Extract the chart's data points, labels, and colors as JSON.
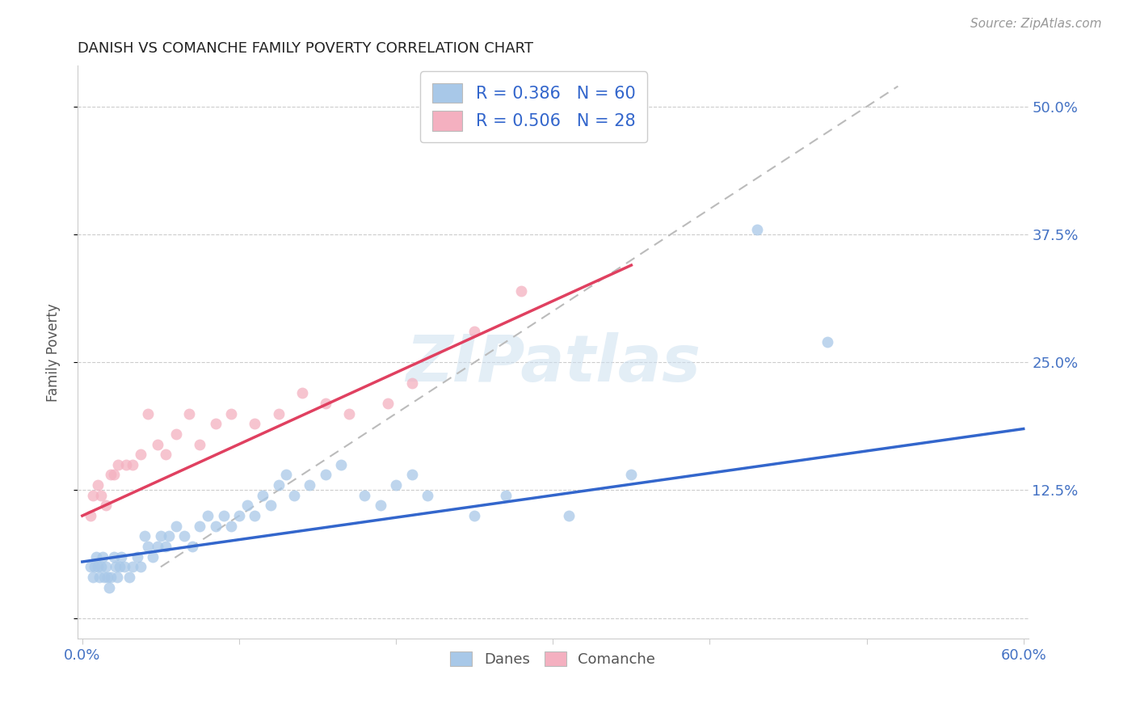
{
  "title": "DANISH VS COMANCHE FAMILY POVERTY CORRELATION CHART",
  "source": "Source: ZipAtlas.com",
  "ylabel": "Family Poverty",
  "xlim": [
    0.0,
    0.6
  ],
  "ylim": [
    -0.02,
    0.54
  ],
  "xtick_positions": [
    0.0,
    0.1,
    0.2,
    0.3,
    0.4,
    0.5,
    0.6
  ],
  "xticklabels": [
    "0.0%",
    "",
    "",
    "",
    "",
    "",
    "60.0%"
  ],
  "ytick_positions": [
    0.0,
    0.125,
    0.25,
    0.375,
    0.5
  ],
  "yticklabels_right": [
    "",
    "12.5%",
    "25.0%",
    "37.5%",
    "50.0%"
  ],
  "danes_R": 0.386,
  "danes_N": 60,
  "comanche_R": 0.506,
  "comanche_N": 28,
  "danes_color": "#a8c8e8",
  "comanche_color": "#f4b0c0",
  "danes_line_color": "#3366cc",
  "comanche_line_color": "#e04060",
  "diagonal_color": "#bbbbbb",
  "watermark": "ZIPatlas",
  "background_color": "#ffffff",
  "grid_color": "#cccccc",
  "title_color": "#222222",
  "axis_label_color": "#555555",
  "tick_label_color": "#4472c4",
  "danes_x": [
    0.005,
    0.007,
    0.008,
    0.009,
    0.01,
    0.011,
    0.012,
    0.013,
    0.014,
    0.015,
    0.016,
    0.017,
    0.018,
    0.02,
    0.021,
    0.022,
    0.024,
    0.025,
    0.027,
    0.03,
    0.032,
    0.035,
    0.037,
    0.04,
    0.042,
    0.045,
    0.048,
    0.05,
    0.053,
    0.055,
    0.06,
    0.065,
    0.07,
    0.075,
    0.08,
    0.085,
    0.09,
    0.095,
    0.1,
    0.105,
    0.11,
    0.115,
    0.12,
    0.125,
    0.13,
    0.135,
    0.145,
    0.155,
    0.165,
    0.18,
    0.19,
    0.2,
    0.21,
    0.22,
    0.25,
    0.27,
    0.31,
    0.35,
    0.43,
    0.475
  ],
  "danes_y": [
    0.05,
    0.04,
    0.05,
    0.06,
    0.05,
    0.04,
    0.05,
    0.06,
    0.04,
    0.05,
    0.04,
    0.03,
    0.04,
    0.06,
    0.05,
    0.04,
    0.05,
    0.06,
    0.05,
    0.04,
    0.05,
    0.06,
    0.05,
    0.08,
    0.07,
    0.06,
    0.07,
    0.08,
    0.07,
    0.08,
    0.09,
    0.08,
    0.07,
    0.09,
    0.1,
    0.09,
    0.1,
    0.09,
    0.1,
    0.11,
    0.1,
    0.12,
    0.11,
    0.13,
    0.14,
    0.12,
    0.13,
    0.14,
    0.15,
    0.12,
    0.11,
    0.13,
    0.14,
    0.12,
    0.1,
    0.12,
    0.1,
    0.14,
    0.38,
    0.27
  ],
  "comanche_x": [
    0.005,
    0.007,
    0.01,
    0.012,
    0.015,
    0.018,
    0.02,
    0.023,
    0.028,
    0.032,
    0.037,
    0.042,
    0.048,
    0.053,
    0.06,
    0.068,
    0.075,
    0.085,
    0.095,
    0.11,
    0.125,
    0.14,
    0.155,
    0.17,
    0.195,
    0.21,
    0.25,
    0.28
  ],
  "comanche_y": [
    0.1,
    0.12,
    0.13,
    0.12,
    0.11,
    0.14,
    0.14,
    0.15,
    0.15,
    0.15,
    0.16,
    0.2,
    0.17,
    0.16,
    0.18,
    0.2,
    0.17,
    0.19,
    0.2,
    0.19,
    0.2,
    0.22,
    0.21,
    0.2,
    0.21,
    0.23,
    0.28,
    0.32
  ]
}
